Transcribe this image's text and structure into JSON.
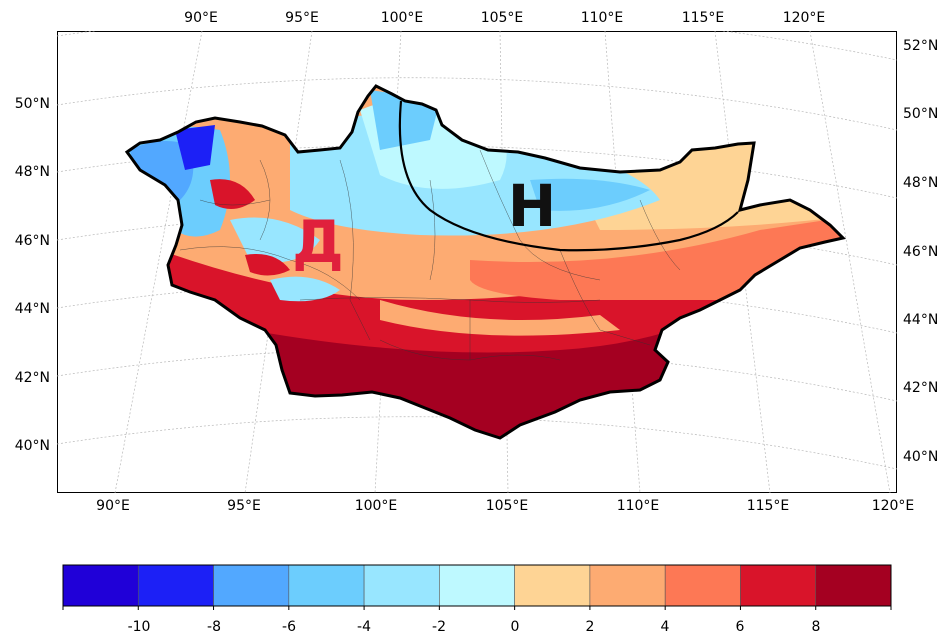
{
  "map": {
    "lon_labels_top": [
      "90°E",
      "95°E",
      "100°E",
      "105°E",
      "110°E",
      "115°E",
      "120°E"
    ],
    "lon_labels_bottom": [
      "90°E",
      "95°E",
      "100°E",
      "105°E",
      "110°E",
      "115°E",
      "120°E"
    ],
    "lat_labels_left": [
      "50°N",
      "48°N",
      "46°N",
      "44°N",
      "42°N",
      "40°N"
    ],
    "lat_labels_right": [
      "52°N",
      "50°N",
      "48°N",
      "46°N",
      "44°N",
      "42°N",
      "40°N"
    ],
    "region_labels": {
      "east": "Н",
      "west": "Д"
    },
    "colors": {
      "east_label": "#111111",
      "west_label": "#e0203c",
      "boundary": "#000000"
    }
  },
  "colorbar": {
    "colors": [
      "#2000d8",
      "#1c20f6",
      "#52a8ff",
      "#6ccdfd",
      "#98e6ff",
      "#bef9ff",
      "#fed495",
      "#fdab72",
      "#fd7855",
      "#d9142a",
      "#a40021"
    ],
    "tick_labels": [
      "-10",
      "-8",
      "-6",
      "-4",
      "-2",
      "0",
      "2",
      "4",
      "6",
      "8"
    ]
  }
}
